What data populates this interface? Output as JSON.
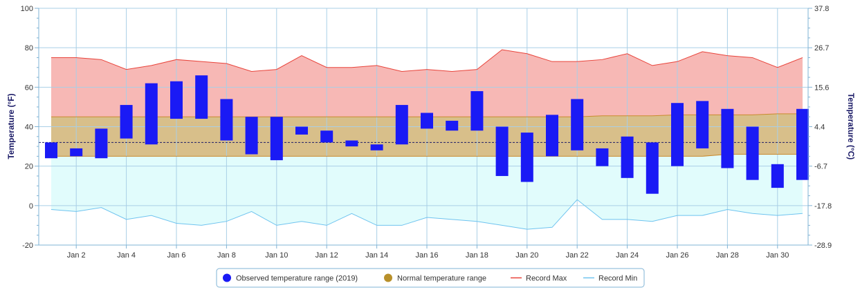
{
  "chart_data": {
    "type": "bar",
    "x": [
      "Jan 1",
      "Jan 2",
      "Jan 3",
      "Jan 4",
      "Jan 5",
      "Jan 6",
      "Jan 7",
      "Jan 8",
      "Jan 9",
      "Jan 10",
      "Jan 11",
      "Jan 12",
      "Jan 13",
      "Jan 14",
      "Jan 15",
      "Jan 16",
      "Jan 17",
      "Jan 18",
      "Jan 19",
      "Jan 20",
      "Jan 21",
      "Jan 22",
      "Jan 23",
      "Jan 24",
      "Jan 25",
      "Jan 26",
      "Jan 27",
      "Jan 28",
      "Jan 29",
      "Jan 30",
      "Jan 31"
    ],
    "x_tick_labels": [
      "Jan 2",
      "Jan 4",
      "Jan 6",
      "Jan 8",
      "Jan 10",
      "Jan 12",
      "Jan 14",
      "Jan 16",
      "Jan 18",
      "Jan 20",
      "Jan 22",
      "Jan 24",
      "Jan 26",
      "Jan 28",
      "Jan 30"
    ],
    "ylabel": "Temperature (°F)",
    "y2label": "Temperature (°C)",
    "ylim": [
      -20,
      100
    ],
    "y_ticks": [
      "-20",
      "0",
      "20",
      "40",
      "60",
      "80",
      "100"
    ],
    "y2_ticks": [
      "-28.9",
      "-17.8",
      "-6.7",
      "4.4",
      "15.6",
      "26.7",
      "37.8"
    ],
    "freezing_line": 32,
    "series": [
      {
        "name": "Observed temperature range (2019)",
        "color": "#1a1af5",
        "low": [
          24,
          25,
          24,
          34,
          31,
          44,
          44,
          33,
          26,
          23,
          36,
          32,
          30,
          28,
          31,
          39,
          38,
          38,
          15,
          12,
          25,
          28,
          20,
          14,
          6,
          20,
          29,
          19,
          13,
          9,
          13
        ],
        "high": [
          32,
          29,
          39,
          51,
          62,
          63,
          66,
          54,
          45,
          45,
          40,
          38,
          33,
          31,
          51,
          47,
          43,
          58,
          40,
          37,
          46,
          54,
          29,
          35,
          32,
          52,
          53,
          49,
          40,
          21,
          49
        ]
      },
      {
        "name": "Normal temperature range",
        "color": "#b8902a",
        "low": [
          25,
          25,
          25,
          25,
          25,
          25,
          25,
          25,
          25,
          25,
          25,
          25,
          25,
          25,
          25,
          25,
          25,
          25,
          25,
          25,
          25,
          25,
          25,
          25,
          25,
          25,
          25,
          26,
          26,
          26,
          26
        ],
        "high": [
          45,
          45,
          45,
          45,
          45,
          45,
          45,
          45,
          45,
          45,
          45,
          45,
          45,
          45,
          45,
          45,
          45,
          45,
          45,
          45,
          45,
          45,
          45.5,
          45.5,
          45.5,
          46,
          46,
          46,
          46,
          46.5,
          46.5
        ]
      },
      {
        "name": "Record Max",
        "color": "#e8433a",
        "values": [
          75,
          75,
          74,
          69,
          71,
          74,
          73,
          72,
          68,
          69,
          76,
          70,
          70,
          71,
          68,
          69,
          68,
          69,
          79,
          77,
          73,
          73,
          74,
          77,
          71,
          73,
          78,
          76,
          75,
          70,
          75
        ]
      },
      {
        "name": "Record Min",
        "color": "#6ec3ef",
        "values": [
          -2,
          -3,
          -1,
          -7,
          -5,
          -9,
          -10,
          -8,
          -3,
          -10,
          -8,
          -10,
          -4,
          -10,
          -10,
          -6,
          -7,
          -8,
          -10,
          -12,
          -11,
          3,
          -7,
          -7,
          -8,
          -5,
          -5,
          -2,
          -4,
          -5,
          -4
        ]
      }
    ],
    "legend_position": "bottom-center",
    "grid": true
  }
}
